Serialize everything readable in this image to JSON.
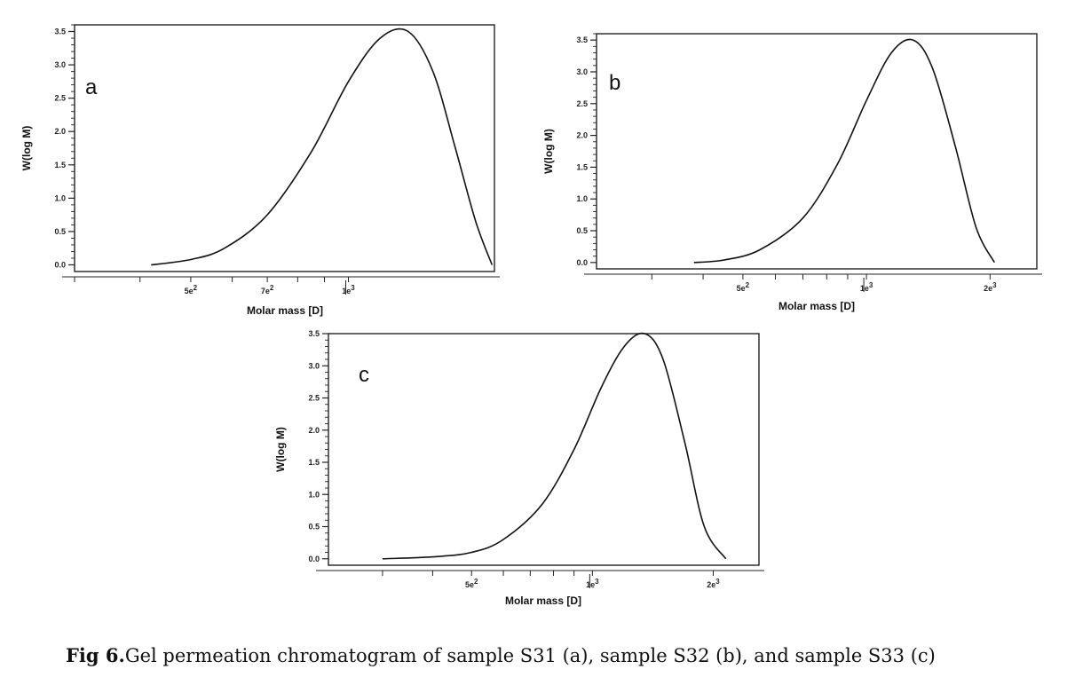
{
  "caption": {
    "label": "Fig 6.",
    "text": "Gel permeation chromatogram of sample S31 (a), sample S32 (b), and sample S33 (c)"
  },
  "chart_data": [
    {
      "panel": "a",
      "type": "line",
      "xlabel": "Molar mass [D]",
      "ylabel": "W(log M)",
      "x_scale": "log",
      "xlim": [
        300,
        1900
      ],
      "ylim": [
        -0.1,
        3.6
      ],
      "yticks": [
        "0.0",
        "0.5",
        "1.0",
        "1.5",
        "2.0",
        "2.5",
        "3.0",
        "3.5"
      ],
      "xticks": [
        {
          "value": 500,
          "base": "5e",
          "exp": "2"
        },
        {
          "value": 700,
          "base": "7e",
          "exp": "2"
        },
        {
          "value": 1000,
          "base": "1e",
          "exp": "3"
        }
      ],
      "series": [
        {
          "x": [
            420,
            500,
            580,
            700,
            850,
            1000,
            1150,
            1300,
            1450,
            1600,
            1750,
            1880
          ],
          "y": [
            0.0,
            0.08,
            0.25,
            0.75,
            1.7,
            2.75,
            3.4,
            3.5,
            2.9,
            1.75,
            0.65,
            0.0
          ]
        }
      ]
    },
    {
      "panel": "b",
      "type": "line",
      "xlabel": "Molar mass [D]",
      "ylabel": "W(log M)",
      "x_scale": "log",
      "xlim": [
        220,
        2600
      ],
      "ylim": [
        -0.1,
        3.6
      ],
      "yticks": [
        "0.0",
        "0.5",
        "1.0",
        "1.5",
        "2.0",
        "2.5",
        "3.0",
        "3.5"
      ],
      "xticks": [
        {
          "value": 500,
          "base": "5e",
          "exp": "2"
        },
        {
          "value": 1000,
          "base": "1e",
          "exp": "3"
        },
        {
          "value": 2000,
          "base": "2e",
          "exp": "3"
        }
      ],
      "series": [
        {
          "x": [
            380,
            450,
            550,
            700,
            850,
            1000,
            1150,
            1300,
            1450,
            1650,
            1850,
            2050
          ],
          "y": [
            0.0,
            0.04,
            0.2,
            0.7,
            1.55,
            2.55,
            3.3,
            3.5,
            3.05,
            1.8,
            0.55,
            0.0
          ]
        }
      ]
    },
    {
      "panel": "c",
      "type": "line",
      "xlabel": "Molar mass [D]",
      "ylabel": "W(log M)",
      "x_scale": "log",
      "xlim": [
        220,
        2600
      ],
      "ylim": [
        -0.1,
        3.5
      ],
      "yticks": [
        "0.0",
        "0.5",
        "1.0",
        "1.5",
        "2.0",
        "2.5",
        "3.0",
        "3.5"
      ],
      "xticks": [
        {
          "value": 500,
          "base": "5e",
          "exp": "2"
        },
        {
          "value": 1000,
          "base": "1e",
          "exp": "3"
        },
        {
          "value": 2000,
          "base": "2e",
          "exp": "3"
        }
      ],
      "series": [
        {
          "x": [
            300,
            400,
            500,
            600,
            750,
            900,
            1050,
            1200,
            1350,
            1500,
            1700,
            1900,
            2150
          ],
          "y": [
            0.0,
            0.03,
            0.1,
            0.3,
            0.85,
            1.7,
            2.65,
            3.3,
            3.5,
            3.1,
            1.8,
            0.5,
            0.0
          ]
        }
      ]
    }
  ]
}
